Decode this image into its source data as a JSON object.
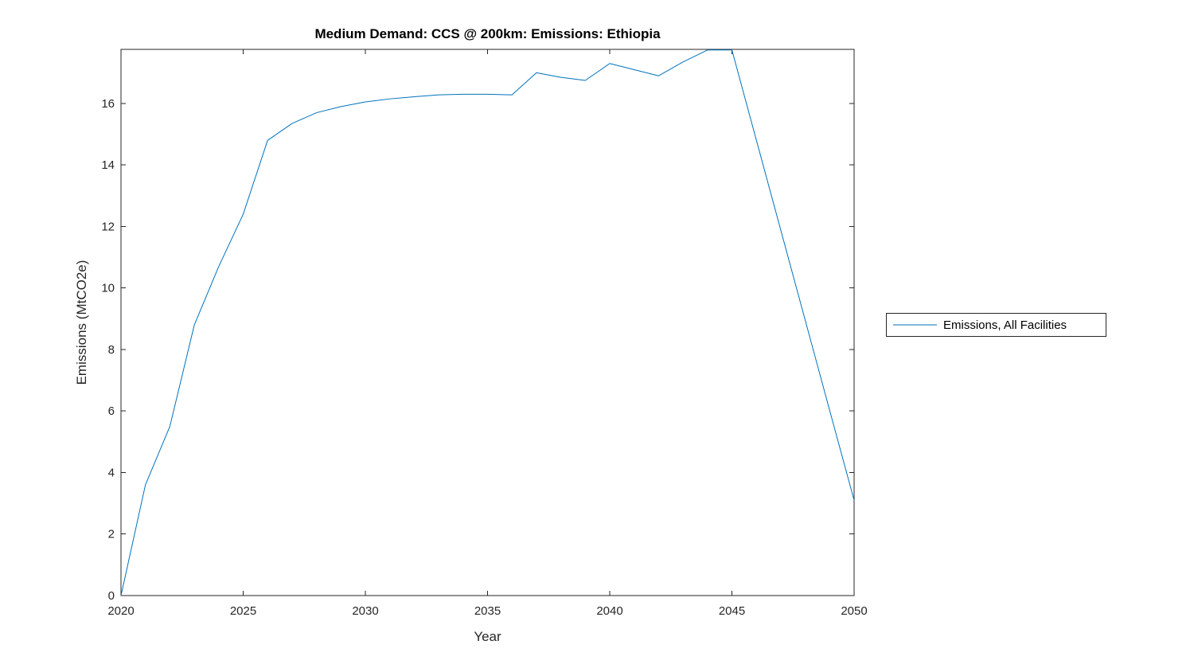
{
  "figure": {
    "background": "#ffffff",
    "axis_color": "#262626",
    "text_color": "#262626"
  },
  "chart_data": {
    "type": "line",
    "title": "Medium Demand: CCS @ 200km: Emissions: Ethiopia",
    "xlabel": "Year",
    "ylabel": "Emissions (MtCO2e)",
    "xlim": [
      2020,
      2050
    ],
    "ylim": [
      0,
      17.76
    ],
    "x_ticks": [
      2020,
      2025,
      2030,
      2035,
      2040,
      2045,
      2050
    ],
    "y_ticks": [
      0,
      2,
      4,
      6,
      8,
      10,
      12,
      14,
      16
    ],
    "grid": false,
    "legend": {
      "position": "right-outside",
      "entries": [
        {
          "label": "Emissions, All Facilities",
          "color": "#0072BD"
        }
      ]
    },
    "series": [
      {
        "name": "Emissions, All Facilities",
        "color": "#0072BD",
        "line_width": 1,
        "x": [
          2020,
          2021,
          2022,
          2023,
          2024,
          2025,
          2026,
          2027,
          2028,
          2029,
          2030,
          2031,
          2032,
          2033,
          2034,
          2035,
          2036,
          2037,
          2038,
          2039,
          2040,
          2041,
          2042,
          2043,
          2044,
          2045,
          2046,
          2047,
          2048,
          2049,
          2050
        ],
        "y": [
          0,
          3.6,
          5.5,
          8.8,
          10.7,
          12.4,
          14.8,
          15.35,
          15.7,
          15.9,
          16.05,
          16.15,
          16.22,
          16.28,
          16.3,
          16.3,
          16.28,
          17.0,
          16.85,
          16.75,
          17.3,
          17.1,
          16.9,
          17.35,
          17.74,
          17.74,
          14.81,
          11.88,
          8.95,
          6.02,
          3.1
        ]
      }
    ]
  }
}
